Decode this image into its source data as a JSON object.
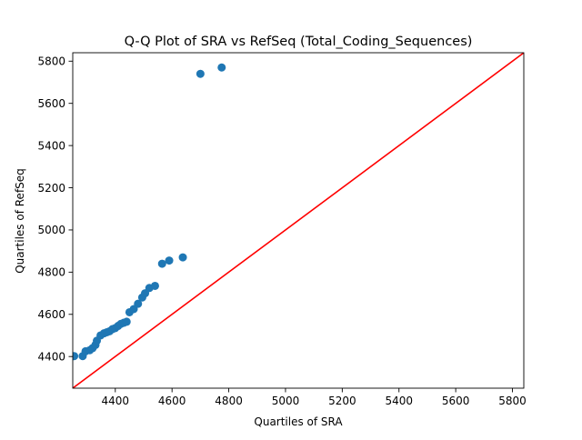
{
  "chart_data": {
    "type": "scatter",
    "title": "Q-Q Plot of SRA vs RefSeq (Total_Coding_Sequences)",
    "xlabel": "Quartiles of SRA",
    "ylabel": "Quartiles of RefSeq",
    "xlim": [
      4250,
      5840
    ],
    "ylim": [
      4250,
      5840
    ],
    "xticks": [
      4400,
      4600,
      4800,
      5000,
      5200,
      5400,
      5600,
      5800
    ],
    "yticks": [
      4400,
      4600,
      4800,
      5000,
      5200,
      5400,
      5600,
      5800
    ],
    "grid": false,
    "colors": {
      "points": "#1f77b4",
      "reference_line": "#ff0000"
    },
    "reference_line": {
      "x": [
        4250,
        5840
      ],
      "y": [
        4250,
        5840
      ]
    },
    "series": [
      {
        "x": [
          4255,
          4285,
          4295,
          4310,
          4320,
          4330,
          4335,
          4348,
          4360,
          4370,
          4380,
          4390,
          4400,
          4410,
          4420,
          4430,
          4440,
          4450,
          4465,
          4480,
          4495,
          4505,
          4520,
          4540,
          4565,
          4590,
          4638,
          4700,
          4775
        ],
        "y": [
          4402,
          4402,
          4425,
          4430,
          4440,
          4455,
          4475,
          4500,
          4510,
          4515,
          4520,
          4530,
          4535,
          4545,
          4555,
          4560,
          4565,
          4610,
          4625,
          4650,
          4680,
          4700,
          4725,
          4735,
          4840,
          4855,
          4870,
          5740,
          5770
        ]
      }
    ]
  }
}
